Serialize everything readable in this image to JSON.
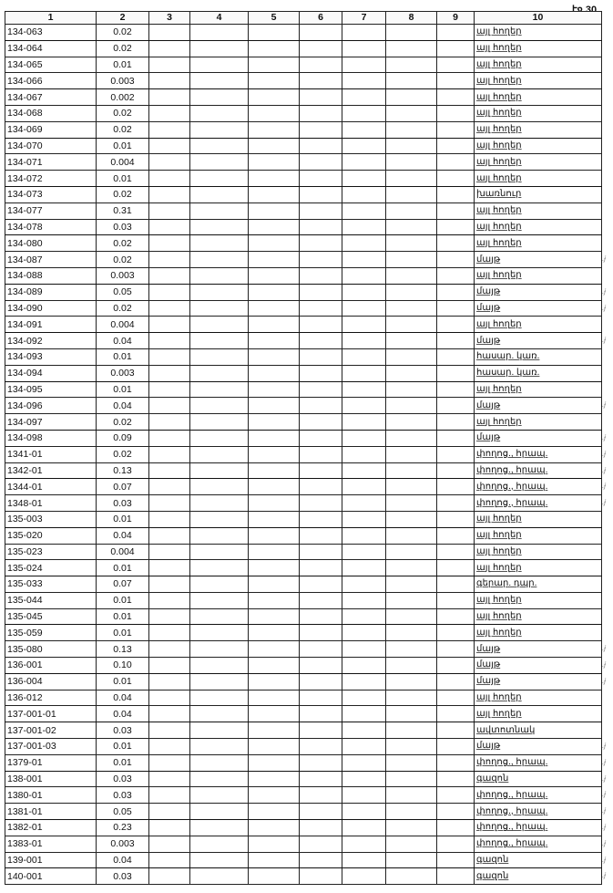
{
  "page_number": "էջ 30",
  "columns": [
    "1",
    "2",
    "3",
    "4",
    "5",
    "6",
    "7",
    "8",
    "9",
    "10"
  ],
  "rows": [
    {
      "id": "134-063",
      "area": "0.02",
      "use": "այլ հողեր",
      "mark": false
    },
    {
      "id": "134-064",
      "area": "0.02",
      "use": "այլ հողեր",
      "mark": false
    },
    {
      "id": "134-065",
      "area": "0.01",
      "use": "այլ հողեր",
      "mark": false
    },
    {
      "id": "134-066",
      "area": "0.003",
      "use": "այլ հողեր",
      "mark": false
    },
    {
      "id": "134-067",
      "area": "0.002",
      "use": "այլ հողեր",
      "mark": false
    },
    {
      "id": "134-068",
      "area": "0.02",
      "use": "այլ հողեր",
      "mark": false
    },
    {
      "id": "134-069",
      "area": "0.02",
      "use": "այլ հողեր",
      "mark": false
    },
    {
      "id": "134-070",
      "area": "0.01",
      "use": "այլ հողեր",
      "mark": false
    },
    {
      "id": "134-071",
      "area": "0.004",
      "use": "այլ հողեր",
      "mark": false
    },
    {
      "id": "134-072",
      "area": "0.01",
      "use": "այլ հողեր",
      "mark": false
    },
    {
      "id": "134-073",
      "area": "0.02",
      "use": "խառնուր",
      "mark": false
    },
    {
      "id": "134-077",
      "area": "0.31",
      "use": "այլ հողեր",
      "mark": false
    },
    {
      "id": "134-078",
      "area": "0.03",
      "use": "այլ հողեր",
      "mark": false
    },
    {
      "id": "134-080",
      "area": "0.02",
      "use": "այլ հողեր",
      "mark": false
    },
    {
      "id": "134-087",
      "area": "0.02",
      "use": "մայթ",
      "mark": true
    },
    {
      "id": "134-088",
      "area": "0.003",
      "use": "այլ հողեր",
      "mark": false
    },
    {
      "id": "134-089",
      "area": "0.05",
      "use": "մայթ",
      "mark": true
    },
    {
      "id": "134-090",
      "area": "0.02",
      "use": "մայթ",
      "mark": true
    },
    {
      "id": "134-091",
      "area": "0.004",
      "use": "այլ հողեր",
      "mark": false
    },
    {
      "id": "134-092",
      "area": "0.04",
      "use": "մայթ",
      "mark": true
    },
    {
      "id": "134-093",
      "area": "0.01",
      "use": "հասար. կառ.",
      "mark": false
    },
    {
      "id": "134-094",
      "area": "0.003",
      "use": "հասար. կառ.",
      "mark": false
    },
    {
      "id": "134-095",
      "area": "0.01",
      "use": "այլ հողեր",
      "mark": false
    },
    {
      "id": "134-096",
      "area": "0.04",
      "use": "մայթ",
      "mark": true
    },
    {
      "id": "134-097",
      "area": "0.02",
      "use": "այլ հողեր",
      "mark": false
    },
    {
      "id": "134-098",
      "area": "0.09",
      "use": "մայթ",
      "mark": true
    },
    {
      "id": "1341-01",
      "area": "0.02",
      "use": "փողոց., հրապ.",
      "mark": true
    },
    {
      "id": "1342-01",
      "area": "0.13",
      "use": "փողոց., հրապ.",
      "mark": true
    },
    {
      "id": "1344-01",
      "area": "0.07",
      "use": "փողոց., հրապ.",
      "mark": true
    },
    {
      "id": "1348-01",
      "area": "0.03",
      "use": "փողոց., հրապ.",
      "mark": true
    },
    {
      "id": "135-003",
      "area": "0.01",
      "use": "այլ հողեր",
      "mark": false
    },
    {
      "id": "135-020",
      "area": "0.04",
      "use": "այլ հողեր",
      "mark": false
    },
    {
      "id": "135-023",
      "area": "0.004",
      "use": "այլ հողեր",
      "mark": false
    },
    {
      "id": "135-024",
      "area": "0.01",
      "use": "այլ հողեր",
      "mark": false
    },
    {
      "id": "135-033",
      "area": "0.07",
      "use": "գերար. դպր.",
      "mark": false
    },
    {
      "id": "135-044",
      "area": "0.01",
      "use": "այլ հողեր",
      "mark": false
    },
    {
      "id": "135-045",
      "area": "0.01",
      "use": "այլ հողեր",
      "mark": false
    },
    {
      "id": "135-059",
      "area": "0.01",
      "use": "այլ հողեր",
      "mark": false
    },
    {
      "id": "135-080",
      "area": "0.13",
      "use": "մայթ",
      "mark": true
    },
    {
      "id": "136-001",
      "area": "0.10",
      "use": "մայթ",
      "mark": true
    },
    {
      "id": "136-004",
      "area": "0.01",
      "use": "մայթ",
      "mark": true
    },
    {
      "id": "136-012",
      "area": "0.04",
      "use": "այլ հողեր",
      "mark": false
    },
    {
      "id": "137-001-01",
      "area": "0.04",
      "use": "այլ հողեր",
      "mark": false
    },
    {
      "id": "137-001-02",
      "area": "0.03",
      "use": "ավտոտնակ",
      "mark": false
    },
    {
      "id": "137-001-03",
      "area": "0.01",
      "use": "մայթ",
      "mark": true
    },
    {
      "id": "1379-01",
      "area": "0.01",
      "use": "փողոց., հրապ.",
      "mark": true
    },
    {
      "id": "138-001",
      "area": "0.03",
      "use": "գազոն",
      "mark": true
    },
    {
      "id": "1380-01",
      "area": "0.03",
      "use": "փողոց., հրապ.",
      "mark": true
    },
    {
      "id": "1381-01",
      "area": "0.05",
      "use": "փողոց., հրապ.",
      "mark": true
    },
    {
      "id": "1382-01",
      "area": "0.23",
      "use": "փողոց., հրապ.",
      "mark": true
    },
    {
      "id": "1383-01",
      "area": "0.003",
      "use": "փողոց., հրապ.",
      "mark": true
    },
    {
      "id": "139-001",
      "area": "0.04",
      "use": "գազոն",
      "mark": true
    },
    {
      "id": "140-001",
      "area": "0.03",
      "use": "գազոն",
      "mark": true
    }
  ]
}
